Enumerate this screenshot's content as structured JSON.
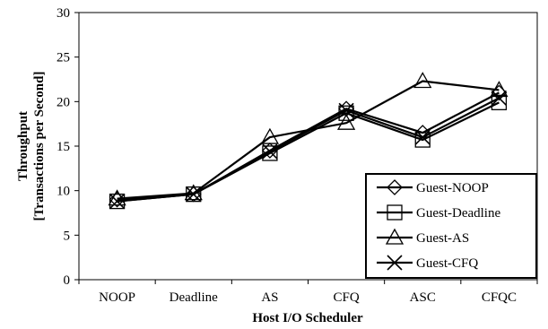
{
  "chart_data": {
    "type": "line",
    "categories": [
      "NOOP",
      "Deadline",
      "AS",
      "CFQ",
      "ASC",
      "CFQC"
    ],
    "series": [
      {
        "name": "Guest-NOOP",
        "marker": "diamond",
        "values": [
          9.0,
          9.6,
          14.5,
          19.2,
          16.5,
          21.0
        ]
      },
      {
        "name": "Guest-Deadline",
        "marker": "square",
        "values": [
          8.8,
          9.6,
          14.2,
          18.7,
          15.7,
          19.9
        ]
      },
      {
        "name": "Guest-AS",
        "marker": "triangle",
        "values": [
          9.1,
          9.7,
          16.0,
          17.6,
          22.3,
          21.3
        ]
      },
      {
        "name": "Guest-CFQ",
        "marker": "x",
        "values": [
          8.8,
          9.6,
          14.4,
          19.0,
          16.0,
          20.4
        ]
      }
    ],
    "ylim": [
      0,
      30
    ],
    "yticks": [
      "0",
      "5",
      "10",
      "15",
      "20",
      "25",
      "30"
    ],
    "xlabel": "Host I/O Scheduler",
    "ylabel_lines": [
      "Throughput",
      "[Transactions per Second]"
    ],
    "grid": false,
    "legend_position": "bottom-right",
    "colors": {
      "line": "#000000",
      "background": "#ffffff"
    }
  }
}
